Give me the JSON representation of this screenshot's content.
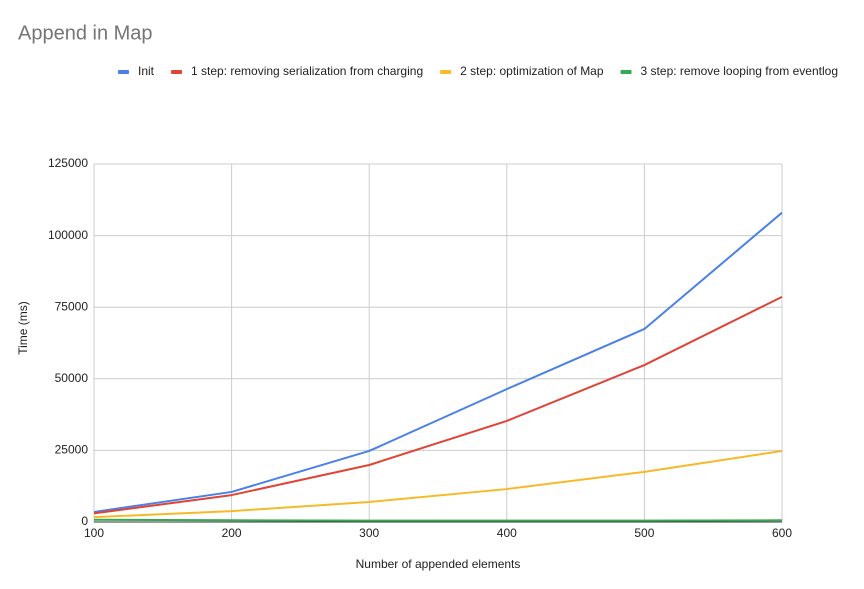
{
  "chart_data": {
    "type": "line",
    "title": "Append in Map",
    "x_label": "Number of appended elements",
    "y_label": "Time (ms)",
    "x": [
      100,
      200,
      300,
      400,
      500,
      600
    ],
    "series": [
      {
        "name": "Init",
        "color": "#4a80e8",
        "values": [
          3500,
          10500,
          24800,
          46400,
          67400,
          108000
        ]
      },
      {
        "name": "1 step: removing serialization from charging",
        "color": "#e04436",
        "values": [
          3000,
          9400,
          19900,
          35300,
          54800,
          78600
        ]
      },
      {
        "name": "2 step: optimization of Map",
        "color": "#f7b928",
        "values": [
          1700,
          3800,
          7000,
          11500,
          17500,
          24800
        ]
      },
      {
        "name": "3 step: remove looping from eventlog",
        "color": "#34a853",
        "values": [
          800,
          600,
          500,
          500,
          500,
          600
        ]
      }
    ],
    "xlim": [
      100,
      600
    ],
    "xticks": [
      100,
      200,
      300,
      400,
      500,
      600
    ],
    "ylim": [
      0,
      125000
    ],
    "yticks": [
      0,
      25000,
      50000,
      75000,
      100000,
      125000
    ],
    "grid": true,
    "legend": "top"
  }
}
